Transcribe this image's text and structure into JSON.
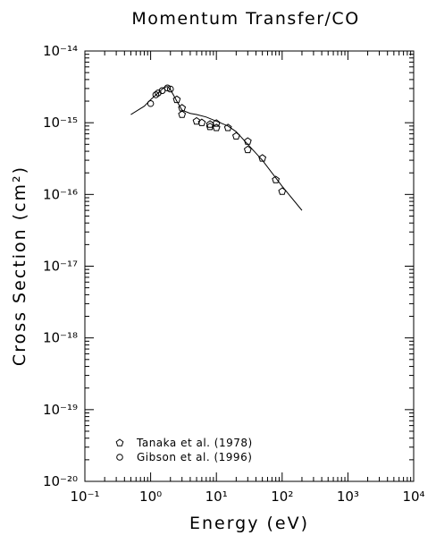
{
  "chart_data": {
    "type": "line",
    "title": "Momentum Transfer/CO",
    "xlabel": "Energy (eV)",
    "ylabel": "Cross Section (cm²)",
    "log_x": true,
    "log_y": true,
    "xlim": [
      0.1,
      10000
    ],
    "ylim": [
      1e-20,
      1e-14
    ],
    "xticks": [
      {
        "value": 0.1,
        "label": "10⁻¹"
      },
      {
        "value": 1,
        "label": "10⁰"
      },
      {
        "value": 10,
        "label": "10¹"
      },
      {
        "value": 100,
        "label": "10²"
      },
      {
        "value": 1000,
        "label": "10³"
      },
      {
        "value": 10000,
        "label": "10⁴"
      }
    ],
    "yticks": [
      {
        "value": 1e-20,
        "label": "10⁻²⁰"
      },
      {
        "value": 1e-19,
        "label": "10⁻¹⁹"
      },
      {
        "value": 1e-18,
        "label": "10⁻¹⁸"
      },
      {
        "value": 1e-17,
        "label": "10⁻¹⁷"
      },
      {
        "value": 1e-16,
        "label": "10⁻¹⁶"
      },
      {
        "value": 1e-15,
        "label": "10⁻¹⁵"
      },
      {
        "value": 1e-14,
        "label": "10⁻¹⁴"
      }
    ],
    "legend_position": "lower left",
    "series": [
      {
        "style": "line",
        "color": "#000000",
        "x": [
          0.5,
          0.8,
          1.0,
          1.3,
          1.6,
          1.8,
          2.0,
          2.5,
          3.0,
          4,
          5,
          7,
          10,
          15,
          20,
          30,
          50,
          100,
          200
        ],
        "values": [
          1.3e-15,
          1.7e-15,
          2.1e-15,
          2.6e-15,
          3.1e-15,
          3.2e-15,
          2.9e-15,
          2e-15,
          1.5e-15,
          1.35e-15,
          1.3e-15,
          1.2e-15,
          1.05e-15,
          9e-16,
          7.5e-16,
          5e-16,
          3e-16,
          1.3e-16,
          6e-17
        ]
      },
      {
        "name": "Tanaka et al. (1978)",
        "style": "pentagon",
        "color": "#000000",
        "x": [
          2.5,
          3,
          3,
          5,
          6,
          8,
          8,
          10,
          10,
          15,
          20,
          30,
          30,
          50,
          80,
          100
        ],
        "values": [
          2.1e-15,
          1.6e-15,
          1.3e-15,
          1.05e-15,
          1e-15,
          9.5e-16,
          8.8e-16,
          9.8e-16,
          8.5e-16,
          8.5e-16,
          6.5e-16,
          5.5e-16,
          4.2e-16,
          3.2e-16,
          1.6e-16,
          1.1e-16
        ]
      },
      {
        "name": "Gibson et al. (1996)",
        "style": "circle",
        "color": "#000000",
        "x": [
          1.0,
          1.2,
          1.3,
          1.5,
          1.8,
          2.0
        ],
        "values": [
          1.85e-15,
          2.45e-15,
          2.6e-15,
          2.8e-15,
          3.05e-15,
          2.95e-15
        ]
      }
    ]
  }
}
